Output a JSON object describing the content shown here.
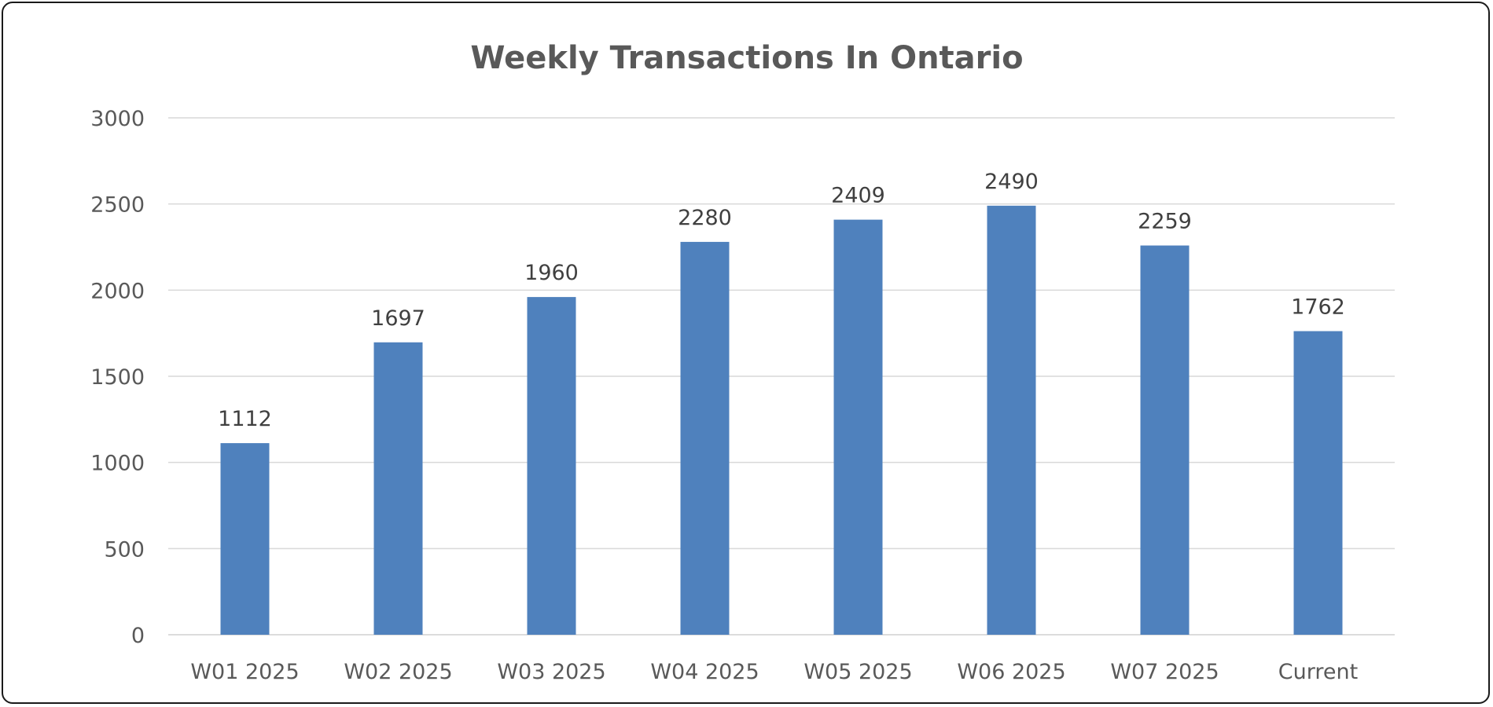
{
  "chart_data": {
    "type": "bar",
    "title": "Weekly Transactions In Ontario",
    "xlabel": "",
    "ylabel": "",
    "categories": [
      "W01 2025",
      "W02 2025",
      "W03 2025",
      "W04 2025",
      "W05 2025",
      "W06 2025",
      "W07 2025",
      "Current"
    ],
    "values": [
      1112,
      1697,
      1960,
      2280,
      2409,
      2490,
      2259,
      1762
    ],
    "data_labels": [
      "1112",
      "1697",
      "1960",
      "2280",
      "2409",
      "2490",
      "2259",
      "1762"
    ],
    "ylim": [
      0,
      3000
    ],
    "yticks": [
      "0",
      "500",
      "1000",
      "1500",
      "2000",
      "2500",
      "3000"
    ],
    "ytick_values": [
      0,
      500,
      1000,
      1500,
      2000,
      2500,
      3000
    ],
    "grid": true,
    "legend": "none",
    "bar_color": "#4f81bd"
  }
}
